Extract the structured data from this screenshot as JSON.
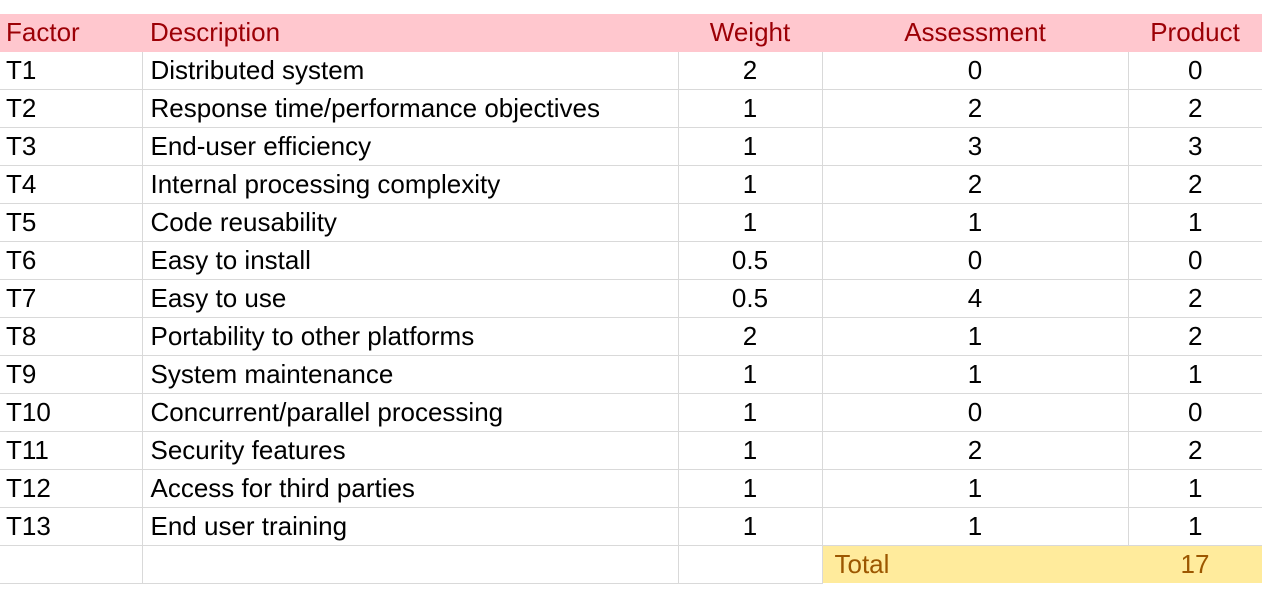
{
  "table": {
    "headers": {
      "factor": "Factor",
      "description": "Description",
      "weight": "Weight",
      "assessment": "Assessment",
      "product": "Product"
    },
    "rows": [
      {
        "factor": "T1",
        "description": "Distributed system",
        "weight": "2",
        "assessment": "0",
        "product": "0"
      },
      {
        "factor": "T2",
        "description": "Response time/performance objectives",
        "weight": "1",
        "assessment": "2",
        "product": "2"
      },
      {
        "factor": "T3",
        "description": "End-user efficiency",
        "weight": "1",
        "assessment": "3",
        "product": "3"
      },
      {
        "factor": "T4",
        "description": "Internal processing complexity",
        "weight": "1",
        "assessment": "2",
        "product": "2"
      },
      {
        "factor": "T5",
        "description": "Code reusability",
        "weight": "1",
        "assessment": "1",
        "product": "1"
      },
      {
        "factor": "T6",
        "description": "Easy to install",
        "weight": "0.5",
        "assessment": "0",
        "product": "0"
      },
      {
        "factor": "T7",
        "description": "Easy to use",
        "weight": "0.5",
        "assessment": "4",
        "product": "2"
      },
      {
        "factor": "T8",
        "description": "Portability to other platforms",
        "weight": "2",
        "assessment": "1",
        "product": "2"
      },
      {
        "factor": "T9",
        "description": "System maintenance",
        "weight": "1",
        "assessment": "1",
        "product": "1"
      },
      {
        "factor": "T10",
        "description": "Concurrent/parallel processing",
        "weight": "1",
        "assessment": "0",
        "product": "0"
      },
      {
        "factor": "T11",
        "description": "Security features",
        "weight": "1",
        "assessment": "2",
        "product": "2"
      },
      {
        "factor": "T12",
        "description": "Access for third parties",
        "weight": "1",
        "assessment": "1",
        "product": "1"
      },
      {
        "factor": "T13",
        "description": "End user training",
        "weight": "1",
        "assessment": "1",
        "product": "1"
      }
    ],
    "total": {
      "label": "Total",
      "value": "17"
    }
  },
  "colors": {
    "header_fill": "#ffc7ce",
    "header_text": "#9c0006",
    "total_fill": "#ffeb9c",
    "total_text": "#9c5700",
    "gridline": "#d9d9d9"
  }
}
